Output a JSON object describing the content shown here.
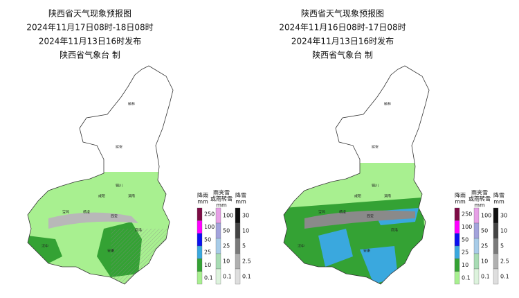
{
  "maps": [
    {
      "title": [
        "陕西省天气现象预报图",
        "2024年11月17日08时-18日08时",
        "2024年11月13日16时发布",
        "陕西省气象台 制"
      ],
      "cities": [
        "榆林",
        "延安",
        "铜川",
        "咸阳",
        "渭南",
        "宝鸡",
        "杨凌",
        "西安",
        "商洛",
        "汉中",
        "安康"
      ]
    },
    {
      "title": [
        "陕西省天气现象预报图",
        "2024年11月16日08时-17日08时",
        "2024年11月13日16时发布",
        "陕西省气象台 制"
      ],
      "cities": [
        "榆林",
        "延安",
        "铜川",
        "咸阳",
        "渭南",
        "宝鸡",
        "杨凌",
        "西安",
        "商洛",
        "汉中",
        "安康"
      ]
    }
  ],
  "legend": [
    {
      "title": [
        "降雨",
        "mm"
      ],
      "levels": [
        {
          "label": 250,
          "color": "#7d0b45"
        },
        {
          "label": 100,
          "color": "#ff00ff"
        },
        {
          "label": 50,
          "color": "#0a10f0"
        },
        {
          "label": 25,
          "color": "#3aa8de"
        },
        {
          "label": 10,
          "color": "#34a234"
        },
        {
          "label": 0.1,
          "color": "#a8f090"
        }
      ]
    },
    {
      "title": [
        "雨夹雪",
        "或雨转雪",
        "mm"
      ],
      "levels": [
        {
          "label": 100,
          "color": "#e6a0e6"
        },
        {
          "label": 50,
          "color": "#a3a3dc"
        },
        {
          "label": 25,
          "color": "#a8cce8"
        },
        {
          "label": 10,
          "color": "#a8dcb4"
        },
        {
          "label": 0.1,
          "color": "#ddf3dd"
        }
      ]
    },
    {
      "title": [
        "降雪",
        "mm"
      ],
      "levels": [
        {
          "label": 30,
          "color": "#111111"
        },
        {
          "label": 10,
          "color": "#444444"
        },
        {
          "label": 5,
          "color": "#7a7a7a"
        },
        {
          "label": 2.5,
          "color": "#b0b0b0"
        },
        {
          "label": 0.1,
          "color": "#dedede"
        }
      ]
    }
  ]
}
